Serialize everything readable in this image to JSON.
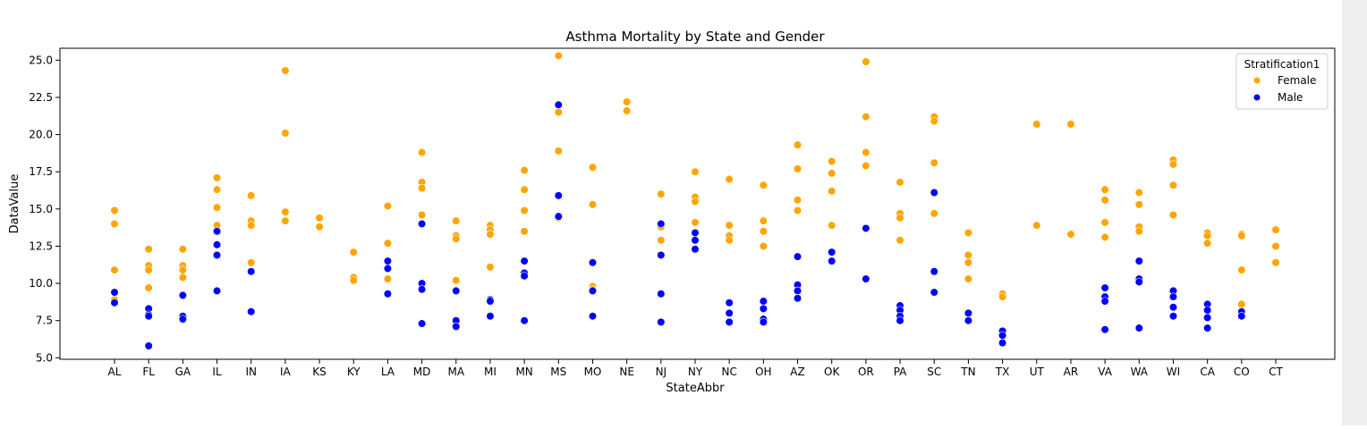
{
  "colors": {
    "female": "#ffa500",
    "male": "#0000ff",
    "axis": "#000000",
    "point_edge": "#ffffff",
    "background": "#ffffff"
  },
  "chart_data": {
    "type": "scatter",
    "title": "Asthma Mortality by State and Gender",
    "xlabel": "StateAbbr",
    "ylabel": "DataValue",
    "ylim": [
      4.9,
      25.8
    ],
    "yticks": [
      "5.0",
      "7.5",
      "10.0",
      "12.5",
      "15.0",
      "17.5",
      "20.0",
      "22.5",
      "25.0"
    ],
    "grid": false,
    "legend_position": "top-right",
    "legend_title": "Stratification1",
    "categories": [
      "AL",
      "FL",
      "GA",
      "IL",
      "IN",
      "IA",
      "KS",
      "KY",
      "LA",
      "MD",
      "MA",
      "MI",
      "MN",
      "MS",
      "MO",
      "NE",
      "NJ",
      "NY",
      "NC",
      "OH",
      "AZ",
      "OK",
      "OR",
      "PA",
      "SC",
      "TN",
      "TX",
      "UT",
      "AR",
      "VA",
      "WA",
      "WI",
      "CA",
      "CO",
      "CT"
    ],
    "series": [
      {
        "name": "Female",
        "color": "#ffa500",
        "points": [
          [
            "AL",
            14.9
          ],
          [
            "AL",
            14.0
          ],
          [
            "AL",
            10.9
          ],
          [
            "AL",
            8.9
          ],
          [
            "FL",
            12.3
          ],
          [
            "FL",
            11.2
          ],
          [
            "FL",
            10.9
          ],
          [
            "FL",
            9.7
          ],
          [
            "GA",
            12.3
          ],
          [
            "GA",
            11.2
          ],
          [
            "GA",
            10.9
          ],
          [
            "GA",
            10.4
          ],
          [
            "IL",
            17.1
          ],
          [
            "IL",
            16.3
          ],
          [
            "IL",
            15.1
          ],
          [
            "IL",
            13.9
          ],
          [
            "IN",
            15.9
          ],
          [
            "IN",
            14.2
          ],
          [
            "IN",
            13.9
          ],
          [
            "IN",
            11.4
          ],
          [
            "IA",
            24.3
          ],
          [
            "IA",
            20.1
          ],
          [
            "IA",
            14.8
          ],
          [
            "IA",
            14.2
          ],
          [
            "KS",
            14.4
          ],
          [
            "KS",
            13.8
          ],
          [
            "KY",
            12.1
          ],
          [
            "KY",
            10.4
          ],
          [
            "KY",
            10.2
          ],
          [
            "LA",
            15.2
          ],
          [
            "LA",
            12.7
          ],
          [
            "LA",
            10.3
          ],
          [
            "MD",
            18.8
          ],
          [
            "MD",
            16.8
          ],
          [
            "MD",
            16.4
          ],
          [
            "MD",
            14.6
          ],
          [
            "MA",
            14.2
          ],
          [
            "MA",
            13.2
          ],
          [
            "MA",
            13.0
          ],
          [
            "MA",
            10.2
          ],
          [
            "MI",
            13.9
          ],
          [
            "MI",
            13.6
          ],
          [
            "MI",
            13.3
          ],
          [
            "MI",
            11.1
          ],
          [
            "MN",
            17.6
          ],
          [
            "MN",
            16.3
          ],
          [
            "MN",
            14.9
          ],
          [
            "MN",
            13.5
          ],
          [
            "MS",
            25.3
          ],
          [
            "MS",
            21.5
          ],
          [
            "MS",
            18.9
          ],
          [
            "MS",
            14.4
          ],
          [
            "MO",
            17.8
          ],
          [
            "MO",
            15.3
          ],
          [
            "MO",
            9.8
          ],
          [
            "MO",
            9.6
          ],
          [
            "NE",
            22.2
          ],
          [
            "NE",
            21.6
          ],
          [
            "NJ",
            16.0
          ],
          [
            "NJ",
            13.8
          ],
          [
            "NJ",
            12.9
          ],
          [
            "NY",
            17.5
          ],
          [
            "NY",
            15.8
          ],
          [
            "NY",
            15.5
          ],
          [
            "NY",
            14.1
          ],
          [
            "NC",
            17.0
          ],
          [
            "NC",
            13.9
          ],
          [
            "NC",
            13.2
          ],
          [
            "NC",
            12.9
          ],
          [
            "OH",
            16.6
          ],
          [
            "OH",
            14.2
          ],
          [
            "OH",
            13.5
          ],
          [
            "OH",
            12.5
          ],
          [
            "AZ",
            19.3
          ],
          [
            "AZ",
            17.7
          ],
          [
            "AZ",
            15.6
          ],
          [
            "AZ",
            14.9
          ],
          [
            "OK",
            18.2
          ],
          [
            "OK",
            17.4
          ],
          [
            "OK",
            16.2
          ],
          [
            "OK",
            13.9
          ],
          [
            "OR",
            24.9
          ],
          [
            "OR",
            21.2
          ],
          [
            "OR",
            18.8
          ],
          [
            "OR",
            17.9
          ],
          [
            "PA",
            16.8
          ],
          [
            "PA",
            14.7
          ],
          [
            "PA",
            14.4
          ],
          [
            "PA",
            12.9
          ],
          [
            "SC",
            21.2
          ],
          [
            "SC",
            20.9
          ],
          [
            "SC",
            18.1
          ],
          [
            "SC",
            14.7
          ],
          [
            "TN",
            13.4
          ],
          [
            "TN",
            11.9
          ],
          [
            "TN",
            11.4
          ],
          [
            "TN",
            10.3
          ],
          [
            "TX",
            9.3
          ],
          [
            "TX",
            9.1
          ],
          [
            "UT",
            20.7
          ],
          [
            "UT",
            13.9
          ],
          [
            "AR",
            20.7
          ],
          [
            "AR",
            13.3
          ],
          [
            "VA",
            16.3
          ],
          [
            "VA",
            15.6
          ],
          [
            "VA",
            14.1
          ],
          [
            "VA",
            13.1
          ],
          [
            "WA",
            16.1
          ],
          [
            "WA",
            15.3
          ],
          [
            "WA",
            13.8
          ],
          [
            "WA",
            13.5
          ],
          [
            "WI",
            18.3
          ],
          [
            "WI",
            18.0
          ],
          [
            "WI",
            16.6
          ],
          [
            "WI",
            14.6
          ],
          [
            "CA",
            13.4
          ],
          [
            "CA",
            13.2
          ],
          [
            "CA",
            12.7
          ],
          [
            "CO",
            13.3
          ],
          [
            "CO",
            13.2
          ],
          [
            "CO",
            10.9
          ],
          [
            "CO",
            8.6
          ],
          [
            "CT",
            13.6
          ],
          [
            "CT",
            12.5
          ],
          [
            "CT",
            11.4
          ]
        ]
      },
      {
        "name": "Male",
        "color": "#0000ff",
        "points": [
          [
            "AL",
            9.4
          ],
          [
            "AL",
            8.7
          ],
          [
            "FL",
            8.3
          ],
          [
            "FL",
            7.9
          ],
          [
            "FL",
            7.8
          ],
          [
            "FL",
            5.8
          ],
          [
            "GA",
            9.2
          ],
          [
            "GA",
            7.8
          ],
          [
            "GA",
            7.6
          ],
          [
            "IL",
            13.5
          ],
          [
            "IL",
            12.6
          ],
          [
            "IL",
            11.9
          ],
          [
            "IL",
            9.5
          ],
          [
            "IN",
            10.8
          ],
          [
            "IN",
            8.1
          ],
          [
            "LA",
            11.5
          ],
          [
            "LA",
            11.0
          ],
          [
            "LA",
            9.3
          ],
          [
            "MD",
            14.0
          ],
          [
            "MD",
            10.0
          ],
          [
            "MD",
            9.6
          ],
          [
            "MD",
            7.3
          ],
          [
            "MA",
            9.5
          ],
          [
            "MA",
            7.5
          ],
          [
            "MA",
            7.1
          ],
          [
            "MI",
            8.9
          ],
          [
            "MI",
            8.8
          ],
          [
            "MI",
            7.8
          ],
          [
            "MN",
            11.5
          ],
          [
            "MN",
            10.7
          ],
          [
            "MN",
            10.5
          ],
          [
            "MN",
            7.5
          ],
          [
            "MS",
            22.0
          ],
          [
            "MS",
            15.9
          ],
          [
            "MS",
            14.5
          ],
          [
            "MO",
            11.4
          ],
          [
            "MO",
            9.5
          ],
          [
            "MO",
            7.8
          ],
          [
            "NJ",
            14.0
          ],
          [
            "NJ",
            11.9
          ],
          [
            "NJ",
            9.3
          ],
          [
            "NJ",
            7.4
          ],
          [
            "NY",
            13.4
          ],
          [
            "NY",
            12.9
          ],
          [
            "NY",
            12.3
          ],
          [
            "NC",
            8.7
          ],
          [
            "NC",
            8.0
          ],
          [
            "NC",
            7.4
          ],
          [
            "OH",
            8.8
          ],
          [
            "OH",
            8.3
          ],
          [
            "OH",
            7.6
          ],
          [
            "OH",
            7.4
          ],
          [
            "AZ",
            11.8
          ],
          [
            "AZ",
            9.9
          ],
          [
            "AZ",
            9.5
          ],
          [
            "AZ",
            9.0
          ],
          [
            "OK",
            12.1
          ],
          [
            "OK",
            11.5
          ],
          [
            "OR",
            13.7
          ],
          [
            "OR",
            10.3
          ],
          [
            "PA",
            8.5
          ],
          [
            "PA",
            8.2
          ],
          [
            "PA",
            7.8
          ],
          [
            "PA",
            7.5
          ],
          [
            "SC",
            16.1
          ],
          [
            "SC",
            10.8
          ],
          [
            "SC",
            9.4
          ],
          [
            "TN",
            8.0
          ],
          [
            "TN",
            7.5
          ],
          [
            "TX",
            6.8
          ],
          [
            "TX",
            6.5
          ],
          [
            "TX",
            6.0
          ],
          [
            "VA",
            9.7
          ],
          [
            "VA",
            9.1
          ],
          [
            "VA",
            8.8
          ],
          [
            "VA",
            6.9
          ],
          [
            "WA",
            11.5
          ],
          [
            "WA",
            10.3
          ],
          [
            "WA",
            10.1
          ],
          [
            "WA",
            7.0
          ],
          [
            "WI",
            9.5
          ],
          [
            "WI",
            9.1
          ],
          [
            "WI",
            8.4
          ],
          [
            "WI",
            7.8
          ],
          [
            "CA",
            8.6
          ],
          [
            "CA",
            8.2
          ],
          [
            "CA",
            7.7
          ],
          [
            "CA",
            7.0
          ],
          [
            "CO",
            8.1
          ],
          [
            "CO",
            7.8
          ]
        ]
      }
    ]
  }
}
